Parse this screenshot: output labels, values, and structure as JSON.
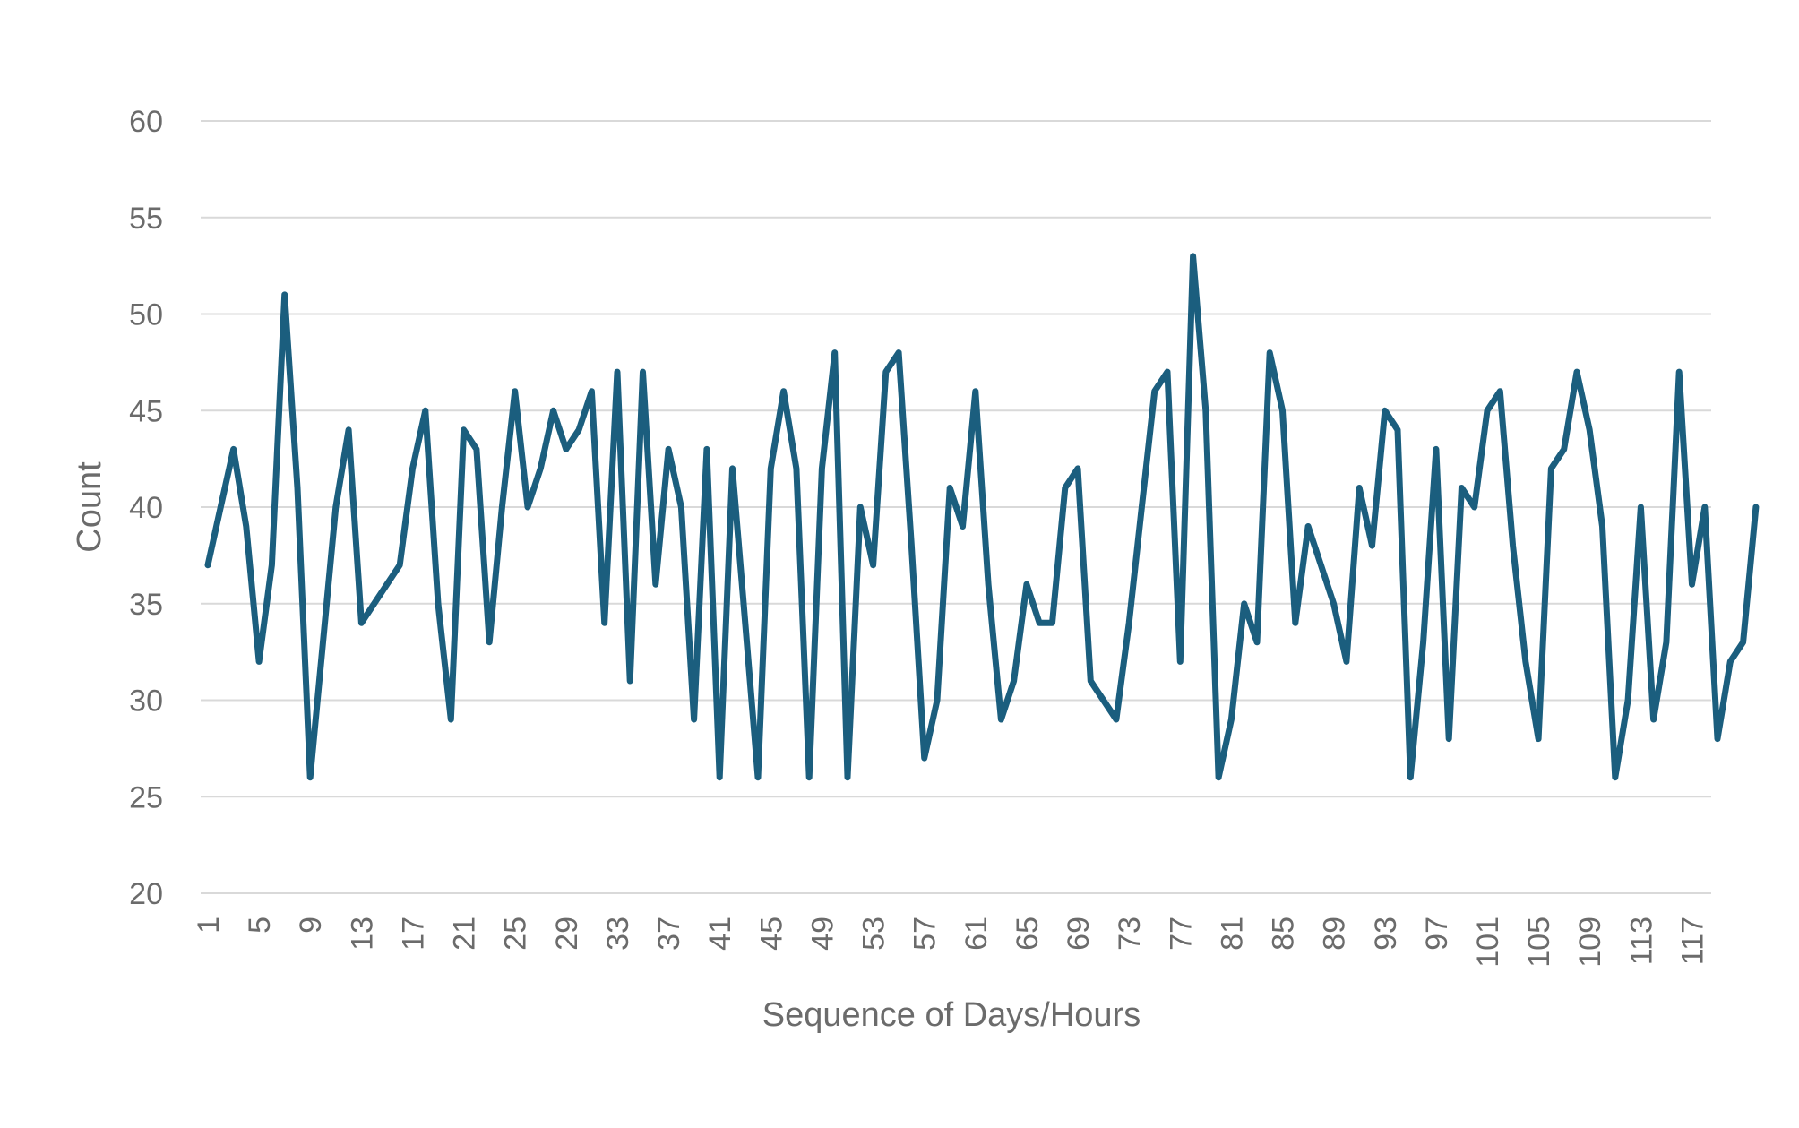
{
  "chart_data": {
    "type": "line",
    "xlabel": "Sequence of Days/Hours",
    "ylabel": "Count",
    "ylim": [
      20,
      60
    ],
    "yticks": [
      20,
      25,
      30,
      35,
      40,
      45,
      50,
      55,
      60
    ],
    "xticks": [
      1,
      5,
      9,
      13,
      17,
      21,
      25,
      29,
      33,
      37,
      41,
      45,
      49,
      53,
      57,
      61,
      65,
      69,
      73,
      77,
      81,
      85,
      89,
      93,
      97,
      101,
      105,
      109,
      113,
      117
    ],
    "x_start": 1,
    "grid": true,
    "legend": "none",
    "series": [
      {
        "color": "#1b5e7e",
        "values": [
          37,
          40,
          43,
          39,
          32,
          37,
          51,
          41,
          26,
          33,
          40,
          44,
          34,
          35,
          36,
          37,
          42,
          45,
          35,
          29,
          44,
          43,
          33,
          40,
          46,
          40,
          42,
          45,
          43,
          44,
          46,
          34,
          47,
          31,
          47,
          36,
          43,
          40,
          29,
          43,
          26,
          42,
          34,
          26,
          42,
          46,
          42,
          26,
          42,
          48,
          26,
          40,
          37,
          47,
          48,
          38,
          27,
          30,
          41,
          39,
          46,
          36,
          29,
          31,
          36,
          34,
          34,
          41,
          42,
          31,
          30,
          29,
          34,
          40,
          46,
          47,
          32,
          53,
          45,
          26,
          29,
          35,
          33,
          48,
          45,
          34,
          39,
          37,
          35,
          32,
          41,
          38,
          45,
          44,
          26,
          33,
          43,
          28,
          41,
          40,
          45,
          46,
          38,
          32,
          28,
          42,
          43,
          47,
          44,
          39,
          26,
          30,
          40,
          29,
          33,
          47,
          36,
          40,
          28,
          32,
          33,
          40
        ]
      }
    ]
  }
}
